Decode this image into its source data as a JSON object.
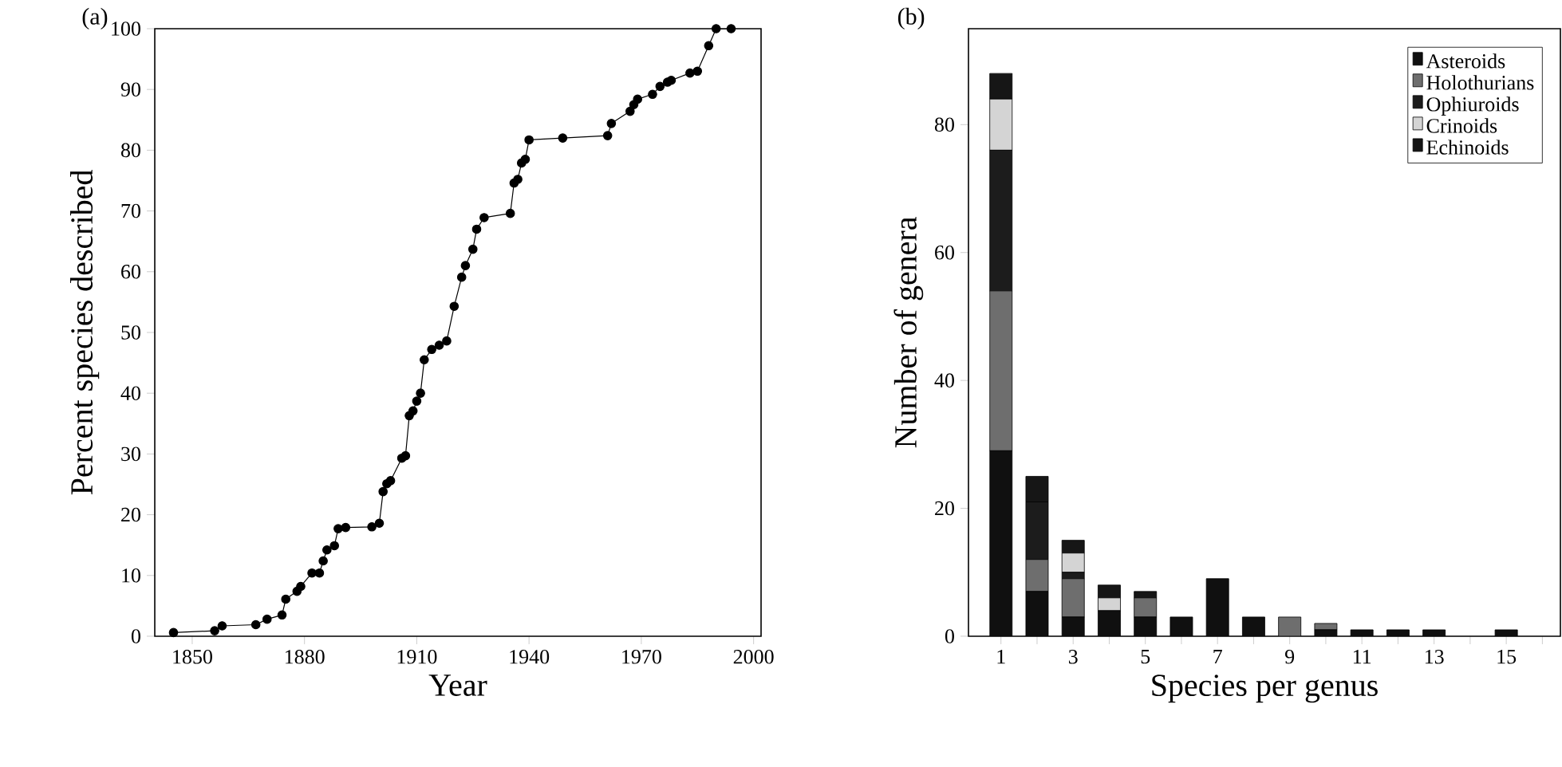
{
  "chart_data": [
    {
      "type": "line",
      "title": "(a)",
      "xlabel": "Year",
      "ylabel": "Percent species described",
      "color": "#000000",
      "marker": "circle",
      "line_style": "solid",
      "x": [
        1845,
        1856,
        1858,
        1867,
        1870,
        1874,
        1875,
        1878,
        1879,
        1882,
        1884,
        1885,
        1886,
        1888,
        1889,
        1891,
        1898,
        1900,
        1901,
        1902,
        1903,
        1906,
        1907,
        1908,
        1909,
        1910,
        1911,
        1912,
        1914,
        1916,
        1918,
        1920,
        1922,
        1923,
        1925,
        1926,
        1928,
        1935,
        1936,
        1937,
        1938,
        1939,
        1940,
        1949,
        1961,
        1962,
        1967,
        1968,
        1969,
        1973,
        1975,
        1977,
        1978,
        1983,
        1985,
        1988,
        1990,
        1994
      ],
      "values": [
        0.6,
        0.9,
        1.7,
        1.9,
        2.8,
        3.5,
        6.1,
        7.4,
        8.2,
        10.4,
        10.4,
        12.4,
        14.2,
        14.9,
        17.7,
        17.9,
        18,
        18.6,
        23.8,
        25.1,
        25.6,
        29.3,
        29.7,
        36.3,
        37.1,
        38.7,
        40,
        45.5,
        47.2,
        47.9,
        48.6,
        54.3,
        59.1,
        61,
        63.7,
        67,
        68.9,
        69.6,
        74.6,
        75.2,
        77.9,
        78.5,
        81.7,
        82,
        82.4,
        84.4,
        86.4,
        87.5,
        88.4,
        89.2,
        90.5,
        91.2,
        91.5,
        92.7,
        93,
        97.2,
        100,
        100
      ],
      "xlim": [
        1840,
        2002
      ],
      "ylim": [
        0,
        100
      ],
      "xticks": [
        1850,
        1880,
        1910,
        1940,
        1970,
        2000
      ],
      "yticks": [
        0,
        10,
        20,
        30,
        40,
        50,
        60,
        70,
        80,
        90,
        100
      ]
    },
    {
      "type": "bar",
      "stacked": true,
      "title": "(b)",
      "xlabel": "Species per genus",
      "ylabel": "Number of genera",
      "legend": "top right",
      "x": [
        1,
        2,
        3,
        4,
        5,
        6,
        7,
        8,
        9,
        10,
        11,
        12,
        13,
        14,
        15,
        16
      ],
      "series": [
        {
          "name": "Asteroids",
          "color": "#101010",
          "values": [
            29,
            7,
            3,
            4,
            3,
            3,
            9,
            3,
            0,
            1,
            1,
            1,
            1,
            0,
            1,
            0
          ]
        },
        {
          "name": "Holothurians",
          "color": "#6e6e6e",
          "values": [
            25,
            5,
            6,
            0,
            3,
            0,
            0,
            0,
            3,
            1,
            0,
            0,
            0,
            0,
            0,
            0
          ]
        },
        {
          "name": "Ophiuroids",
          "color": "#1c1c1c",
          "values": [
            22,
            9,
            1,
            0,
            0,
            0,
            0,
            0,
            0,
            0,
            0,
            0,
            0,
            0,
            0,
            0
          ]
        },
        {
          "name": "Crinoids",
          "color": "#d4d4d4",
          "values": [
            8,
            0,
            3,
            2,
            0,
            0,
            0,
            0,
            0,
            0,
            0,
            0,
            0,
            0,
            0,
            0
          ]
        },
        {
          "name": "Echinoids",
          "color": "#161616",
          "values": [
            4,
            4,
            2,
            2,
            1,
            0,
            0,
            0,
            0,
            0,
            0,
            0,
            0,
            0,
            0,
            0
          ]
        }
      ],
      "xlim": [
        0.1,
        16.5
      ],
      "ylim": [
        0,
        95
      ],
      "xticks": [
        1,
        {
          "value": 2,
          "label": null
        },
        3,
        {
          "value": 4,
          "label": null
        },
        5,
        {
          "value": 6,
          "label": null
        },
        7,
        {
          "value": 8,
          "label": null
        },
        9,
        {
          "value": 10,
          "label": null
        },
        11,
        {
          "value": 12,
          "label": null
        },
        13,
        {
          "value": 14,
          "label": null
        },
        15,
        {
          "value": 16,
          "label": null
        }
      ],
      "yticks": [
        0,
        20,
        40,
        60,
        80
      ]
    }
  ]
}
